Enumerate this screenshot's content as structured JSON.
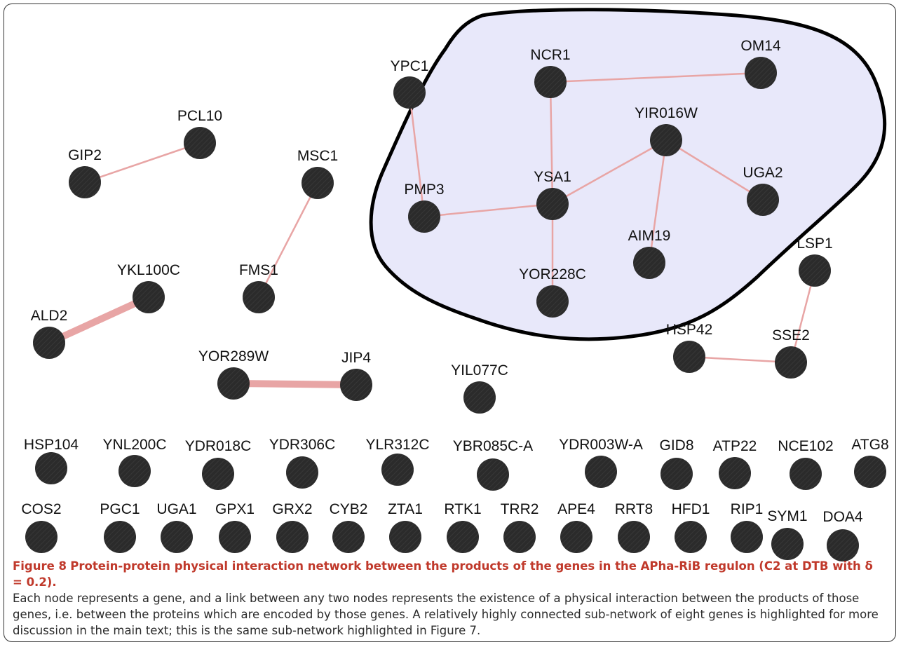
{
  "figure": {
    "caption_number": "Figure 8",
    "caption_title": "Protein-protein physical interaction network between the products of the genes in the APha-RiB regulon (C2 at DTB with δ = 0.2).",
    "caption_body": "Each node represents a gene, and a link between any two nodes represents the existence of a physical interaction between the products of those genes, i.e. between the proteins which are encoded by those genes. A relatively highly connected sub-network of eight genes is highlighted for more discussion in the main text; this is the same sub-network highlighted in Figure 7."
  },
  "colors": {
    "node_fill": "#2b2b2b",
    "edge": "#e8a5a5",
    "highlight_fill": "#e8e8fa",
    "highlight_stroke": "#000000"
  },
  "highlighted_subnetwork": [
    "NCR1",
    "OM14",
    "YIR016W",
    "YSA1",
    "PMP3",
    "UGA2",
    "AIM19",
    "YOR228C"
  ],
  "nodes": [
    "YPC1",
    "NCR1",
    "OM14",
    "PCL10",
    "GIP2",
    "MSC1",
    "YIR016W",
    "YSA1",
    "PMP3",
    "UGA2",
    "AIM19",
    "LSP1",
    "YKL100C",
    "FMS1",
    "YOR228C",
    "ALD2",
    "HSP42",
    "SSE2",
    "YOR289W",
    "JIP4",
    "YIL077C",
    "HSP104",
    "YNL200C",
    "YDR018C",
    "YDR306C",
    "YLR312C",
    "YBR085C-A",
    "YDR003W-A",
    "GID8",
    "ATP22",
    "NCE102",
    "ATG8",
    "COS2",
    "PGC1",
    "UGA1",
    "GPX1",
    "GRX2",
    "CYB2",
    "ZTA1",
    "RTK1",
    "TRR2",
    "APE4",
    "RRT8",
    "HFD1",
    "RIP1",
    "SYM1",
    "DOA4"
  ],
  "edges": [
    {
      "source": "GIP2",
      "target": "PCL10",
      "weight": "normal"
    },
    {
      "source": "MSC1",
      "target": "FMS1",
      "weight": "normal"
    },
    {
      "source": "YPC1",
      "target": "PMP3",
      "weight": "normal"
    },
    {
      "source": "NCR1",
      "target": "OM14",
      "weight": "normal"
    },
    {
      "source": "NCR1",
      "target": "YSA1",
      "weight": "normal"
    },
    {
      "source": "PMP3",
      "target": "YSA1",
      "weight": "normal"
    },
    {
      "source": "YSA1",
      "target": "YIR016W",
      "weight": "normal"
    },
    {
      "source": "YSA1",
      "target": "YOR228C",
      "weight": "normal"
    },
    {
      "source": "YIR016W",
      "target": "UGA2",
      "weight": "normal"
    },
    {
      "source": "YIR016W",
      "target": "AIM19",
      "weight": "normal"
    },
    {
      "source": "LSP1",
      "target": "SSE2",
      "weight": "normal"
    },
    {
      "source": "HSP42",
      "target": "SSE2",
      "weight": "normal"
    },
    {
      "source": "YKL100C",
      "target": "ALD2",
      "weight": "heavy"
    },
    {
      "source": "YOR289W",
      "target": "JIP4",
      "weight": "heavy"
    }
  ]
}
